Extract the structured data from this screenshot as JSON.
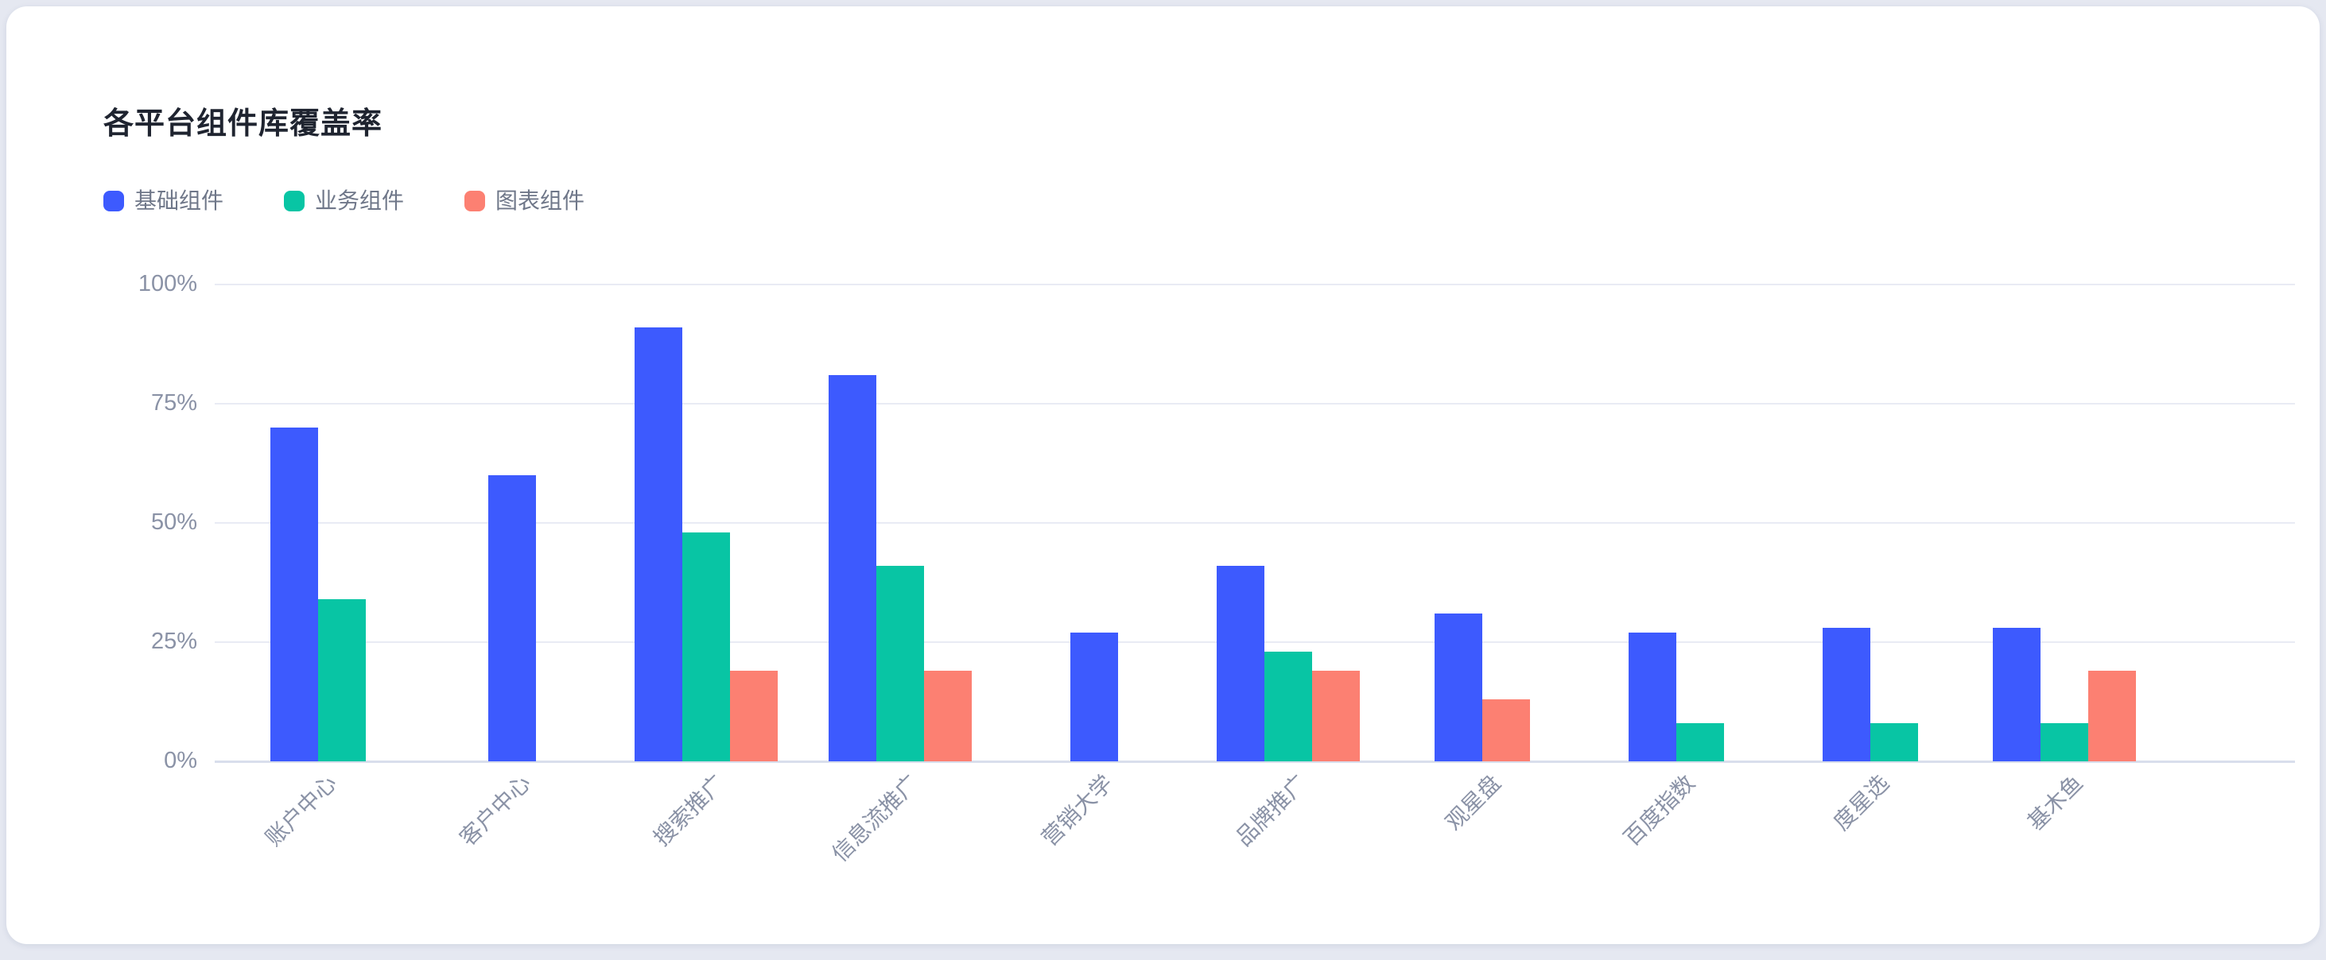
{
  "title": "各平台组件库覆盖率",
  "legend": [
    {
      "label": "基础组件"
    },
    {
      "label": "业务组件"
    },
    {
      "label": "图表组件"
    }
  ],
  "chart_data": {
    "type": "bar",
    "title": "各平台组件库覆盖率",
    "categories": [
      "账户中心",
      "客户中心",
      "搜索推广",
      "信息流推广",
      "营销大学",
      "品牌推广",
      "观星盘",
      "百度指数",
      "度星选",
      "基木鱼"
    ],
    "series": [
      {
        "name": "基础组件",
        "color": "#3D5AFE",
        "values": [
          70,
          60,
          91,
          81,
          27,
          41,
          31,
          27,
          28,
          28
        ]
      },
      {
        "name": "业务组件",
        "color": "#08C5A4",
        "values": [
          34,
          null,
          48,
          41,
          null,
          23,
          null,
          8,
          8,
          8
        ]
      },
      {
        "name": "图表组件",
        "color": "#FC8072",
        "values": [
          null,
          null,
          19,
          19,
          null,
          19,
          13,
          null,
          null,
          19
        ]
      }
    ],
    "ylim": [
      0,
      100
    ],
    "yticks": [
      "100%",
      "75%",
      "50%",
      "25%",
      "0%"
    ],
    "ytick_values": [
      100,
      75,
      50,
      25,
      0
    ],
    "unit": "%",
    "xlabel": "",
    "ylabel": "",
    "grid": true,
    "legend_position": "top-left",
    "colors": {
      "grid_line": "#E9EBF4",
      "axis_line": "#D9DEEC",
      "axis_text": "#8A92A6",
      "legend_text": "#6F7789",
      "title_text": "#1F2430",
      "card_background": "#FFFFFF",
      "page_background": "#E5E8F1"
    }
  }
}
